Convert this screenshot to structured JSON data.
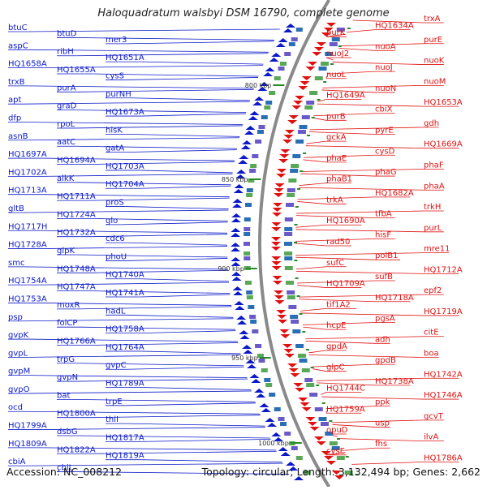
{
  "title": "Haloquadratum walsbyi DSM 16790, complete genome",
  "accession": "Accession: NC_008212",
  "topology": "Topology: circular; Length: 3,132,494 bp; Genes: 2,662",
  "colors": {
    "forward": "#0b19c8",
    "reverse": "#e01010",
    "backbone": "#8a8a8a",
    "tick": "#2a8a2a"
  },
  "kbp_marks": [
    "800 kbp",
    "850 kbp",
    "900 kbp",
    "950 kbp",
    "1000 kbp"
  ],
  "left_genes": [
    "btuC",
    "btuD",
    "mer3",
    "aspC",
    "ribH",
    "HQ1651A",
    "HQ1658A",
    "HQ1655A",
    "cysS",
    "trxB",
    "purA",
    "purNH",
    "apt",
    "graD",
    "HQ1673A",
    "dfp",
    "rpoL",
    "hisK",
    "asnB",
    "aatC",
    "gatA",
    "HQ1697A",
    "HQ1694A",
    "HQ1703A",
    "HQ1702A",
    "alkK",
    "HQ1704A",
    "HQ1713A",
    "HQ1711A",
    "proS",
    "gltB",
    "HQ1724A",
    "glo",
    "HQ1717H",
    "HQ1732A",
    "cdc6",
    "HQ1728A",
    "glpK",
    "phoU",
    "smc",
    "HQ1748A",
    "HQ1740A",
    "HQ1754A",
    "HQ1747A",
    "HQ1741A",
    "HQ1753A",
    "moxR",
    "hadL",
    "psp",
    "folCP",
    "HQ1758A",
    "gvpK",
    "HQ1766A",
    "HQ1764A",
    "gvpL",
    "trpG",
    "gvpC",
    "gvpM",
    "gvpN",
    "HQ1789A",
    "gvpO",
    "bat",
    "trpE",
    "ocd",
    "HQ1800A",
    "thiI",
    "HQ1799A",
    "dsbG",
    "HQ1817A",
    "HQ1809A",
    "HQ1822A",
    "HQ1819A",
    "cbiA",
    "cbiL"
  ],
  "right_genes": [
    "trxA",
    "HQ1634A",
    "purK",
    "purE",
    "nuoA",
    "nuoJ2",
    "nuoK",
    "nuoJ",
    "nuoL",
    "nuoM",
    "nuoN",
    "HQ1649A",
    "HQ1653A",
    "cbiX",
    "purB",
    "gdh",
    "pyrE",
    "gckA",
    "HQ1669A",
    "cysD",
    "phaE",
    "phaF",
    "phaG",
    "phaB1",
    "phaA",
    "HQ1682A",
    "trkA",
    "trkH",
    "tfbA",
    "HQ1690A",
    "purL",
    "hisF",
    "rad50",
    "mre11",
    "polB1",
    "sufC",
    "HQ1712A",
    "sufB",
    "HQ1709A",
    "epf2",
    "HQ1718A",
    "tif1A2",
    "HQ1719A",
    "pgsA",
    "hcpE",
    "citE",
    "adh",
    "gpdA",
    "boa",
    "gpdB",
    "glpC",
    "HQ1742A",
    "HQ1738A",
    "HQ1744C",
    "HQ1746A",
    "ppk",
    "HQ1759A",
    "gcvT",
    "usp",
    "opuD",
    "ilvA",
    "fhs",
    "cysE",
    "HQ1786A"
  ]
}
